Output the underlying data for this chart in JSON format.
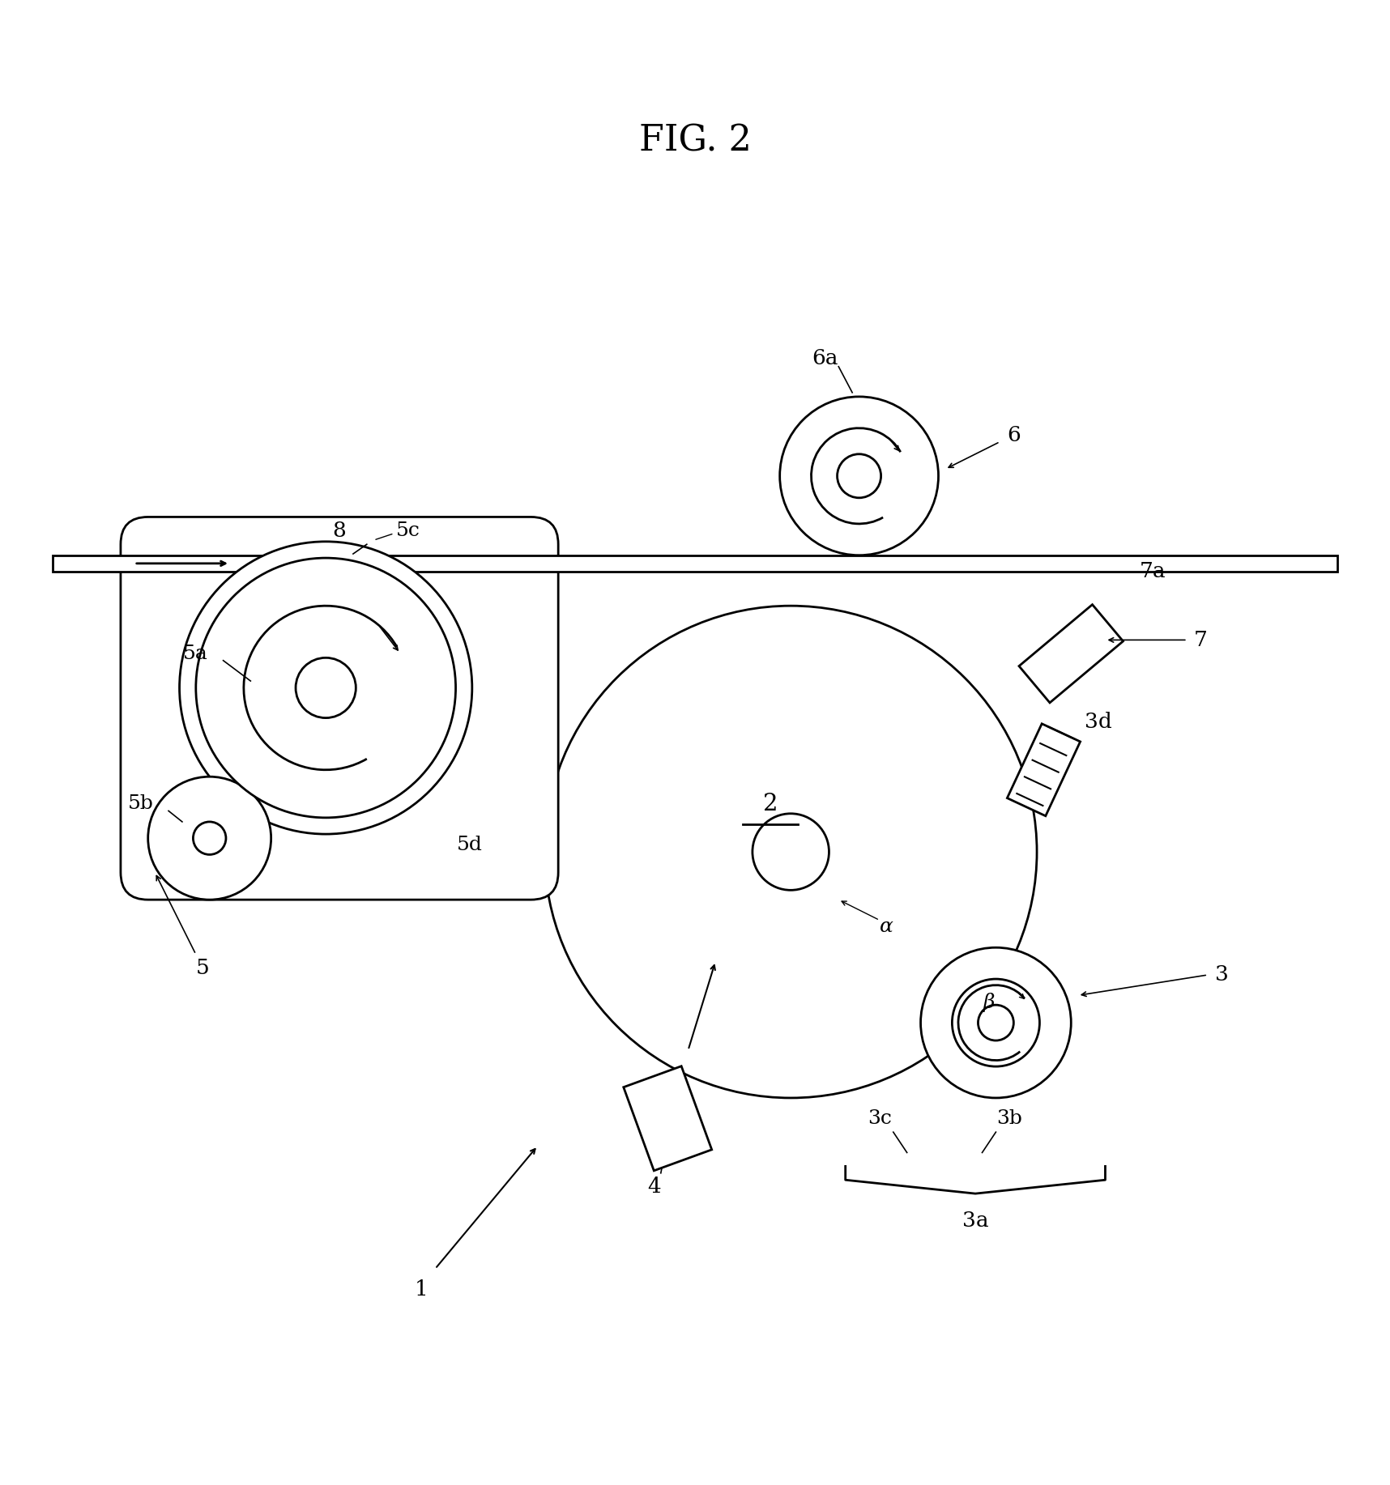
{
  "title": "FIG. 2",
  "bg_color": "#ffffff",
  "line_color": "#000000",
  "fig_width": 17.16,
  "fig_height": 18.34,
  "labels": {
    "title": "FIG. 2",
    "1": "1",
    "2": "2",
    "3": "3",
    "3a": "3a",
    "3b": "3b",
    "3c": "3c",
    "3d": "3d",
    "4": "4",
    "5": "5",
    "5a": "5a",
    "5b": "5b",
    "5c": "5c",
    "5d": "5d",
    "6": "6",
    "6a": "6a",
    "7": "7",
    "7a": "7a",
    "8": "8",
    "alpha": "α",
    "beta": "β"
  }
}
